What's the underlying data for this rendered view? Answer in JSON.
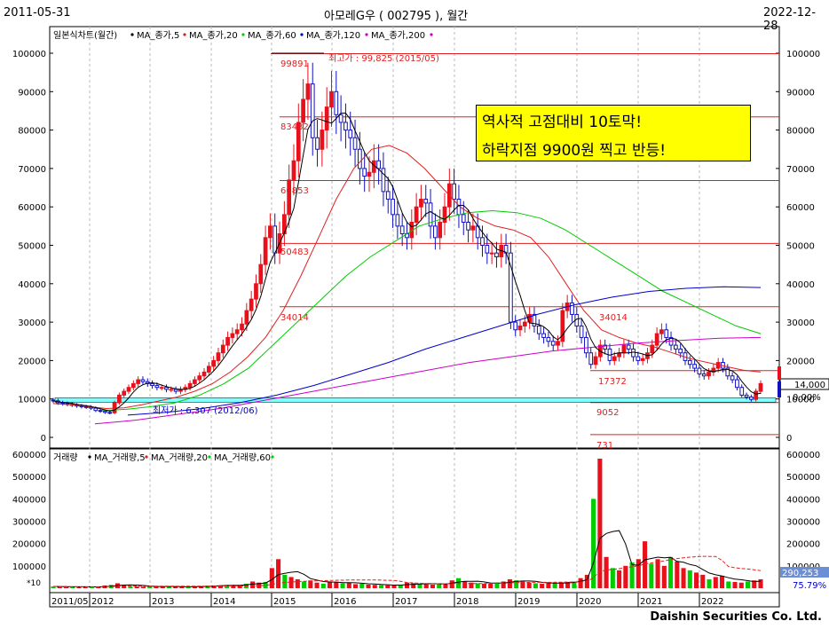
{
  "header": {
    "start_date": "2011-05-31",
    "title": "아모레G우 ( 002795 ), 월간",
    "end_date": "2022-12-28"
  },
  "price_legend": {
    "label": "일본식차트(월간)",
    "items": [
      {
        "text": "MA_종가,5",
        "color": "#000000"
      },
      {
        "text": "MA_종가,20",
        "color": "#e02020"
      },
      {
        "text": "MA_종가,60",
        "color": "#00cc00"
      },
      {
        "text": "MA_종가,120",
        "color": "#0000cc"
      },
      {
        "text": "MA_종가,200",
        "color": "#cc00cc"
      }
    ]
  },
  "volume_legend": {
    "label": "거래량",
    "items": [
      {
        "text": "MA_거래량,5",
        "color": "#000000"
      },
      {
        "text": "MA_거래량,20",
        "color": "#e02020"
      },
      {
        "text": "MA_거래량,60",
        "color": "#00cc00"
      }
    ]
  },
  "callout": {
    "line1": "역사적 고점대비 10토막!",
    "line2": "하락지점 9900원 찍고 반등!"
  },
  "annotations": {
    "high_label": "최고가 : 99,825 (2015/05)",
    "low_label": "최저가 : 6,307 (2012/06)"
  },
  "price_panel": {
    "current_price": "14,000",
    "change": "0.00%"
  },
  "volume_panel": {
    "current_volume": "290,253",
    "ratio": "75.79%",
    "multiplier": "*10"
  },
  "footer": "Daishin Securities Co. Ltd.",
  "colors": {
    "up": "#e8101a",
    "down": "#ffffff",
    "down_border": "#1010c0",
    "bg": "#ffffff",
    "cyan": "#7fffff"
  },
  "chart_data": {
    "type": "candlestick",
    "x_tick_labels": [
      "2011/05",
      "2012",
      "2013",
      "2014",
      "2015",
      "2016",
      "2017",
      "2018",
      "2019",
      "2020",
      "2021",
      "2022"
    ],
    "price_axis": {
      "ylim": [
        0,
        100000
      ],
      "ticks": [
        0,
        10000,
        20000,
        30000,
        40000,
        50000,
        60000,
        70000,
        80000,
        90000,
        100000
      ]
    },
    "volume_axis": {
      "ylim": [
        0,
        600000
      ],
      "ticks": [
        100000,
        200000,
        300000,
        400000,
        500000,
        600000
      ]
    },
    "horizontal_levels": [
      {
        "value": 99891,
        "label": "99891"
      },
      {
        "value": 83432,
        "label": "83432"
      },
      {
        "value": 66853,
        "label": "66853"
      },
      {
        "value": 50483,
        "label": "50483"
      },
      {
        "value": 34014,
        "label": "34014"
      },
      {
        "value": 34014,
        "label": "34014"
      },
      {
        "value": 17372,
        "label": "17372"
      },
      {
        "value": 9052,
        "label": "9052"
      },
      {
        "value": 731,
        "label": "731"
      }
    ],
    "price_series_monthly_close": [
      9500,
      9000,
      8800,
      8600,
      8400,
      8200,
      8000,
      7900,
      7600,
      7000,
      6800,
      6500,
      6400,
      9000,
      11000,
      12000,
      13000,
      14000,
      15000,
      14500,
      14000,
      13500,
      13000,
      13000,
      12500,
      12500,
      12000,
      12500,
      13000,
      14000,
      15000,
      16000,
      17000,
      18500,
      20000,
      22000,
      24000,
      26000,
      27000,
      28000,
      29500,
      33000,
      36000,
      40000,
      45000,
      52000,
      55000,
      48000,
      53000,
      58000,
      67000,
      72000,
      82000,
      88000,
      92000,
      78000,
      75000,
      80000,
      86000,
      90000,
      84000,
      82000,
      80000,
      78000,
      75000,
      70000,
      68000,
      69000,
      72000,
      70000,
      64000,
      62000,
      58000,
      55000,
      53000,
      52000,
      56000,
      60000,
      62000,
      61000,
      55000,
      52000,
      56000,
      60000,
      66000,
      62000,
      58000,
      56000,
      54000,
      55000,
      52000,
      50000,
      48000,
      48000,
      47000,
      50000,
      48000,
      30000,
      28000,
      29000,
      30000,
      32000,
      29000,
      27000,
      26000,
      25000,
      24000,
      25000,
      33000,
      35000,
      32000,
      29000,
      26000,
      22000,
      19000,
      21000,
      24000,
      23000,
      20000,
      21000,
      22000,
      24000,
      23000,
      21000,
      20000,
      20500,
      22000,
      24000,
      27000,
      28000,
      26000,
      24000,
      23000,
      22000,
      20000,
      19000,
      18000,
      16500,
      16000,
      17000,
      18000,
      19500,
      18000,
      16000,
      15000,
      13000,
      11000,
      10500,
      9900,
      12000,
      14000
    ],
    "ma_series": [
      {
        "name": "MA_종가,20",
        "color": "#e02020",
        "values": [
          8800,
          8500,
          8000,
          7500,
          7700,
          8500,
          9500,
          10500,
          12000,
          14000,
          17000,
          21000,
          26000,
          33000,
          42000,
          52000,
          62000,
          70000,
          75000,
          76000,
          74000,
          70000,
          65000,
          60000,
          57000,
          55000,
          54000,
          52000,
          47000,
          40000,
          33000,
          28000,
          26000,
          24500,
          23500,
          22000,
          20500,
          19500,
          18500,
          17500,
          17000
        ]
      },
      {
        "name": "MA_종가,60",
        "color": "#00cc00",
        "values": [
          null,
          null,
          7000,
          7300,
          8000,
          9000,
          11000,
          14000,
          18000,
          24000,
          30000,
          36000,
          42000,
          47000,
          51000,
          55000,
          57000,
          58500,
          59000,
          58500,
          57000,
          54000,
          50000,
          46000,
          42000,
          38000,
          35000,
          32000,
          29000,
          27000
        ]
      },
      {
        "name": "MA_종가,120",
        "color": "#0000cc",
        "values": [
          null,
          null,
          5800,
          6500,
          7500,
          9000,
          11000,
          13500,
          16500,
          19500,
          23000,
          26000,
          29000,
          32000,
          34500,
          36500,
          38000,
          38800,
          39200,
          39000
        ]
      },
      {
        "name": "MA_종가,200",
        "color": "#cc00cc",
        "values": [
          null,
          3500,
          4500,
          6000,
          7500,
          9500,
          11500,
          13500,
          15500,
          17500,
          19500,
          21000,
          22500,
          23500,
          24500,
          25200,
          25800,
          26000
        ]
      }
    ],
    "volume_series_monthly": [
      8000,
      7000,
      6000,
      5000,
      6000,
      7000,
      6000,
      5000,
      12000,
      15000,
      22000,
      15000,
      9000,
      8000,
      7000,
      9000,
      7000,
      6000,
      8000,
      7000,
      6000,
      5000,
      8000,
      9000,
      11000,
      12000,
      13000,
      15000,
      14000,
      12000,
      20000,
      30000,
      25000,
      28000,
      90000,
      130000,
      60000,
      50000,
      40000,
      30000,
      35000,
      25000,
      20000,
      30000,
      28000,
      22000,
      24000,
      18000,
      20000,
      16000,
      15000,
      14000,
      13000,
      12000,
      15000,
      25000,
      22000,
      20000,
      18000,
      16000,
      22000,
      20000,
      35000,
      45000,
      30000,
      25000,
      22000,
      20000,
      21000,
      25000,
      30000,
      40000,
      35000,
      30000,
      25000,
      22000,
      20000,
      22000,
      24000,
      26000,
      28000,
      30000,
      45000,
      60000,
      400000,
      580000,
      140000,
      90000,
      80000,
      100000,
      115000,
      130000,
      210000,
      110000,
      130000,
      100000,
      140000,
      120000,
      90000,
      80000,
      70000,
      60000,
      40000,
      50000,
      55000,
      30000,
      28000,
      25000,
      30000,
      35000,
      40000
    ]
  }
}
